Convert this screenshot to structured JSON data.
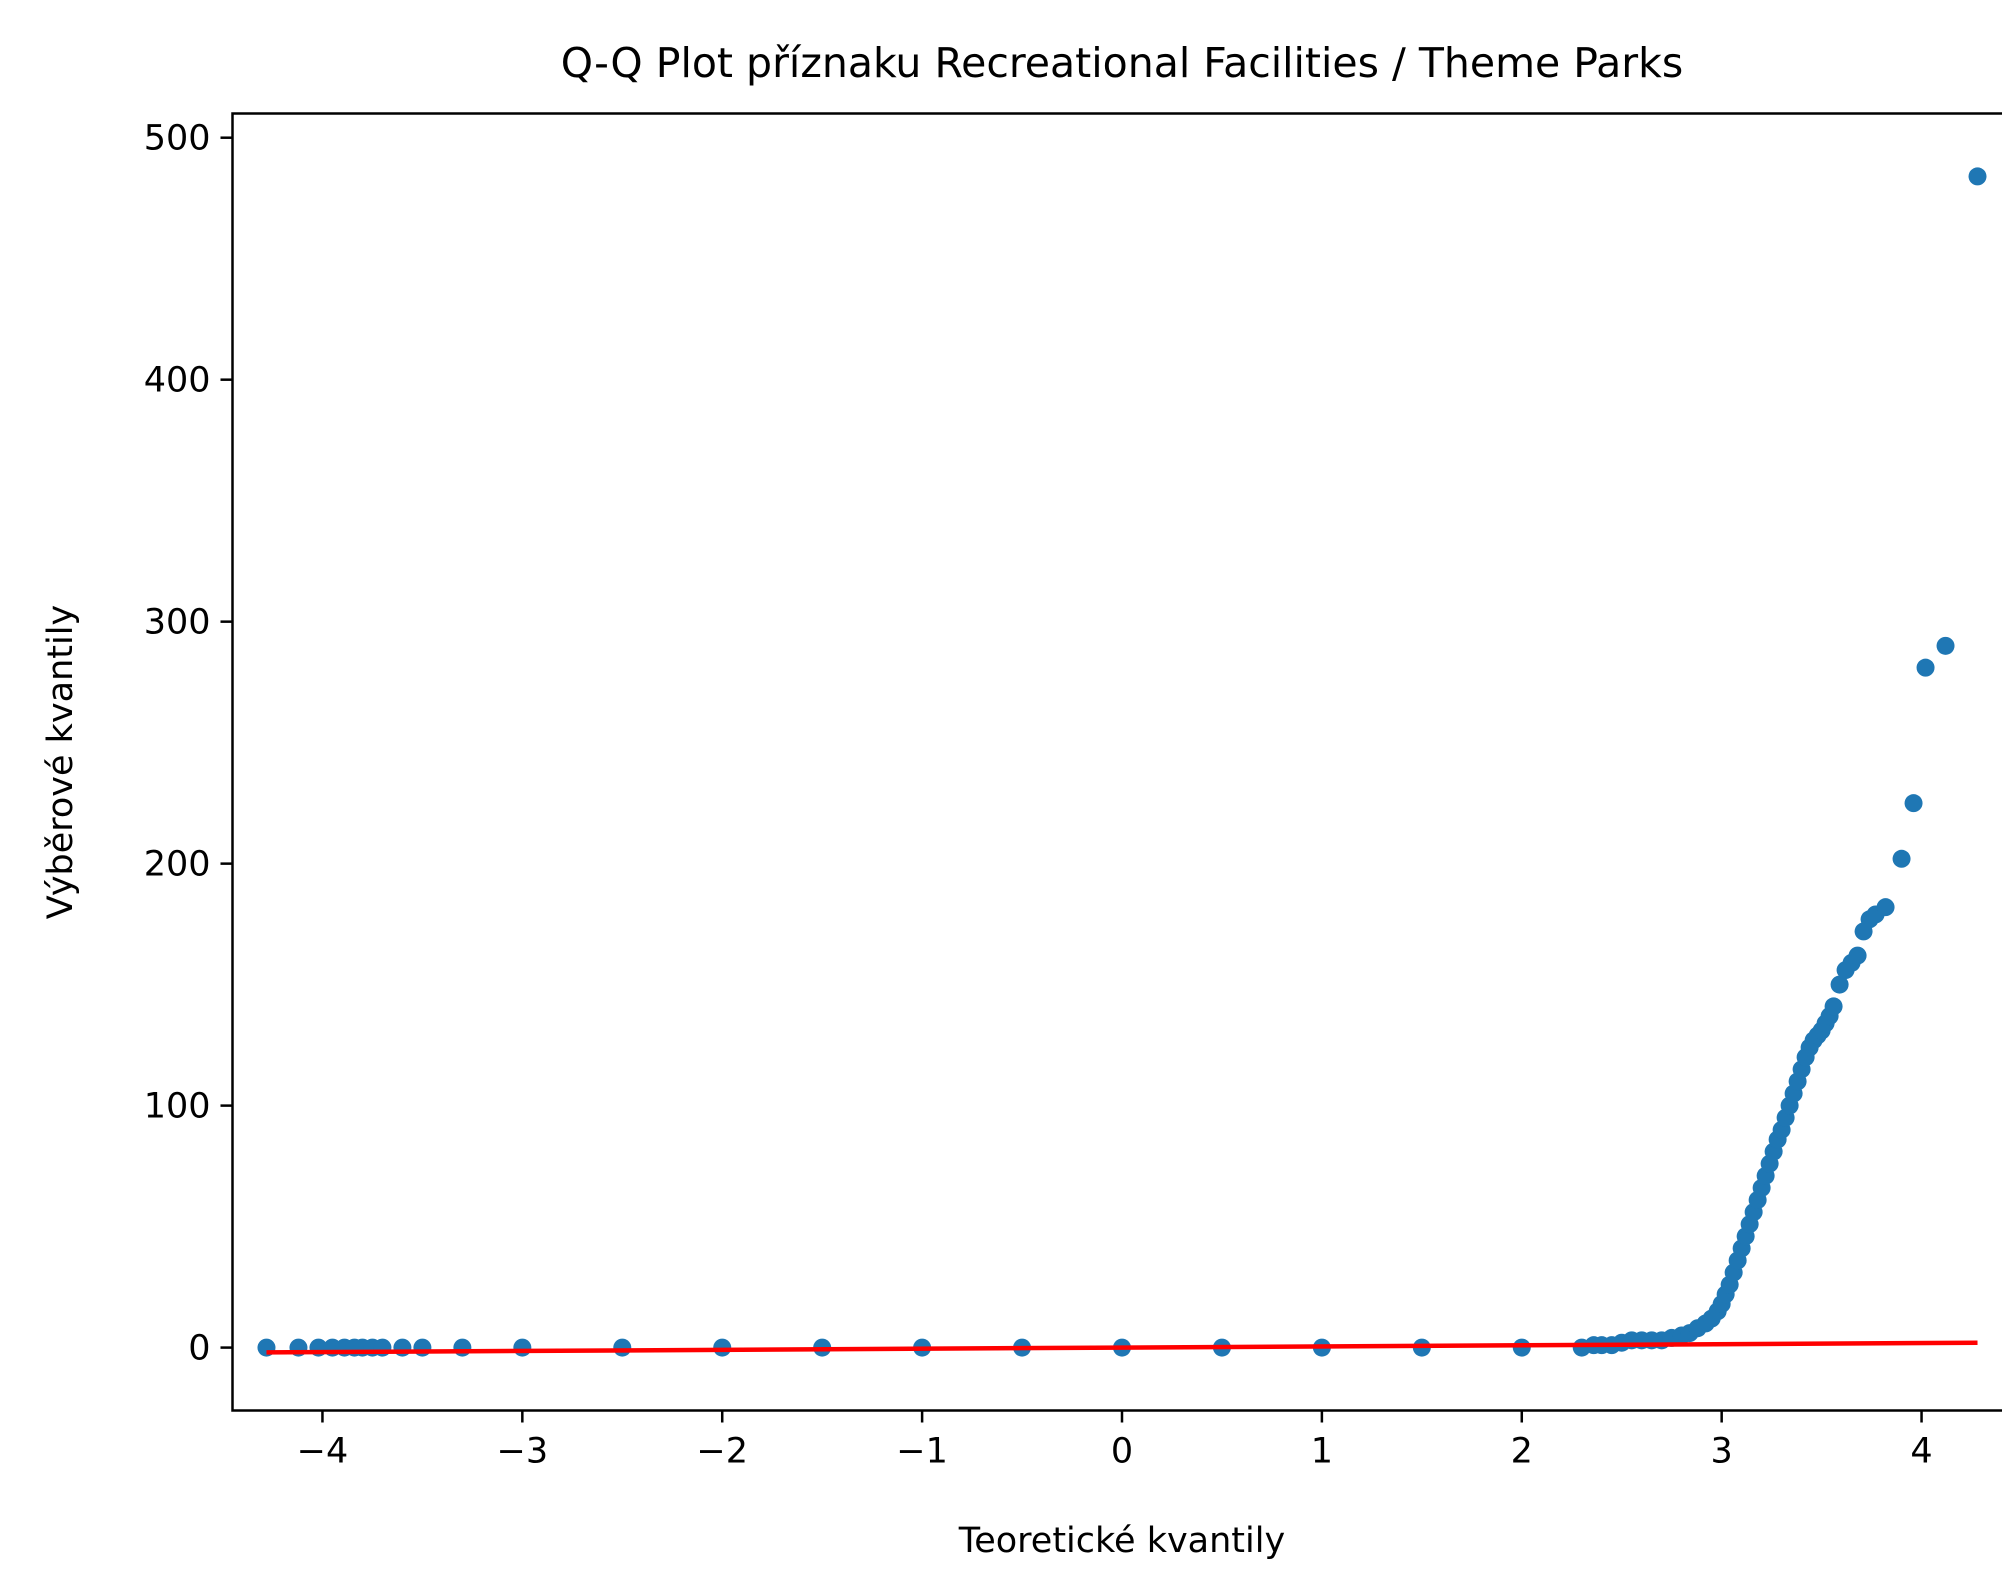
{
  "chart_data": {
    "type": "scatter",
    "title": "Q-Q Plot příznaku Recreational Facilities / Theme Parks",
    "xlabel": "Teoretické kvantily",
    "ylabel": "Výběrové kvantily",
    "xlim": [
      -4.45,
      4.45
    ],
    "ylim": [
      -26,
      510
    ],
    "xticks": [
      -4,
      -3,
      -2,
      -1,
      0,
      1,
      2,
      3,
      4
    ],
    "xtick_labels": [
      "−4",
      "−3",
      "−2",
      "−1",
      "0",
      "1",
      "2",
      "3",
      "4"
    ],
    "yticks": [
      0,
      100,
      200,
      300,
      400,
      500
    ],
    "ytick_labels": [
      "0",
      "100",
      "200",
      "300",
      "400",
      "500"
    ],
    "grid": false,
    "series": [
      {
        "kind": "points",
        "color": "#1f77b4",
        "points": [
          [
            -4.28,
            0
          ],
          [
            -4.12,
            0
          ],
          [
            -4.02,
            0
          ],
          [
            -3.95,
            0
          ],
          [
            -3.89,
            0
          ],
          [
            -3.84,
            0
          ],
          [
            -3.8,
            0
          ],
          [
            -3.75,
            0
          ],
          [
            -3.7,
            0
          ],
          [
            -3.6,
            0
          ],
          [
            -3.5,
            0
          ],
          [
            -3.3,
            0
          ],
          [
            -3.0,
            0
          ],
          [
            -2.5,
            0
          ],
          [
            -2.0,
            0
          ],
          [
            -1.5,
            0
          ],
          [
            -1.0,
            0
          ],
          [
            -0.5,
            0
          ],
          [
            0.0,
            0
          ],
          [
            0.5,
            0
          ],
          [
            1.0,
            0
          ],
          [
            1.5,
            0
          ],
          [
            2.0,
            0
          ],
          [
            2.3,
            0
          ],
          [
            2.36,
            1
          ],
          [
            2.4,
            1
          ],
          [
            2.45,
            1
          ],
          [
            2.5,
            2
          ],
          [
            2.55,
            3
          ],
          [
            2.6,
            3
          ],
          [
            2.65,
            3
          ],
          [
            2.7,
            3
          ],
          [
            2.75,
            4
          ],
          [
            2.8,
            5
          ],
          [
            2.84,
            6
          ],
          [
            2.88,
            8
          ],
          [
            2.92,
            10
          ],
          [
            2.95,
            12
          ],
          [
            2.98,
            15
          ],
          [
            3.0,
            18
          ],
          [
            3.02,
            22
          ],
          [
            3.04,
            26
          ],
          [
            3.06,
            31
          ],
          [
            3.08,
            36
          ],
          [
            3.1,
            41
          ],
          [
            3.12,
            46
          ],
          [
            3.14,
            51
          ],
          [
            3.16,
            56
          ],
          [
            3.18,
            61
          ],
          [
            3.2,
            66
          ],
          [
            3.22,
            71
          ],
          [
            3.24,
            76
          ],
          [
            3.26,
            81
          ],
          [
            3.28,
            86
          ],
          [
            3.3,
            90
          ],
          [
            3.32,
            95
          ],
          [
            3.34,
            100
          ],
          [
            3.36,
            105
          ],
          [
            3.38,
            110
          ],
          [
            3.4,
            115
          ],
          [
            3.42,
            120
          ],
          [
            3.44,
            124
          ],
          [
            3.46,
            127
          ],
          [
            3.48,
            129
          ],
          [
            3.5,
            131
          ],
          [
            3.52,
            134
          ],
          [
            3.54,
            137
          ],
          [
            3.56,
            141
          ],
          [
            3.59,
            150
          ],
          [
            3.62,
            156
          ],
          [
            3.65,
            159
          ],
          [
            3.68,
            162
          ],
          [
            3.71,
            172
          ],
          [
            3.74,
            177
          ],
          [
            3.77,
            179
          ],
          [
            3.82,
            182
          ],
          [
            3.9,
            202
          ],
          [
            3.96,
            225
          ],
          [
            4.02,
            281
          ],
          [
            4.12,
            290
          ],
          [
            4.28,
            484
          ]
        ]
      },
      {
        "kind": "line",
        "color": "#ff0000",
        "points": [
          [
            -4.28,
            -2
          ],
          [
            4.28,
            2
          ]
        ]
      }
    ]
  }
}
